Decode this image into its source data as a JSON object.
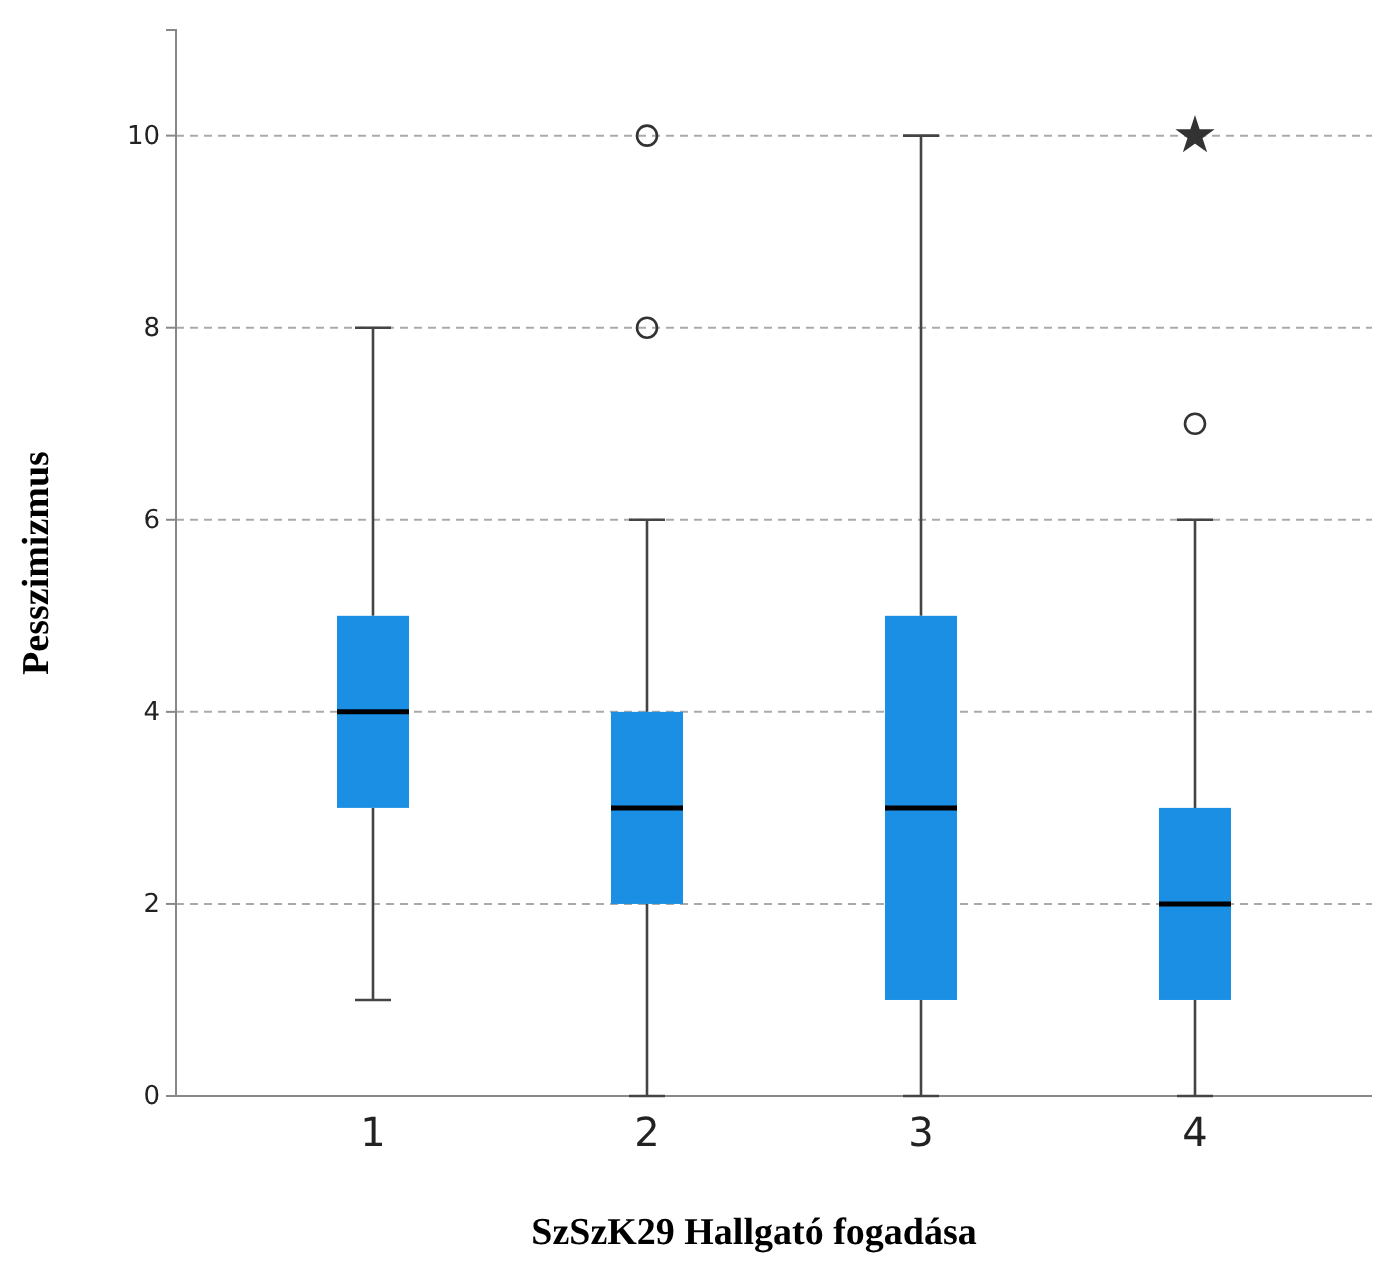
{
  "chart_data": {
    "type": "box",
    "xlabel": "SzSzK29 Hallgató fogadása",
    "ylabel": "Pesszimizmus",
    "categories": [
      "1",
      "2",
      "3",
      "4"
    ],
    "color": "#1a8fe3",
    "boxes": [
      {
        "low": 1,
        "q1": 3,
        "median": 4,
        "q3": 5,
        "high": 8
      },
      {
        "low": 0,
        "q1": 2,
        "median": 3,
        "q3": 4,
        "high": 6,
        "outliers": [
          8,
          10
        ]
      },
      {
        "low": 0,
        "q1": 1,
        "median": 3,
        "q3": 5,
        "high": 10
      },
      {
        "low": 0,
        "q1": 1,
        "median": 2,
        "q3": 3,
        "high": 6,
        "outliers": [
          7
        ]
      }
    ],
    "series": [
      {
        "type": "scatter",
        "marker": "star",
        "color": "#333333",
        "x": [
          "4"
        ],
        "values": [
          10
        ]
      }
    ],
    "ylim": [
      0,
      11.1
    ],
    "yticks": [
      0,
      2,
      4,
      6,
      8,
      10
    ],
    "grid": "y"
  }
}
